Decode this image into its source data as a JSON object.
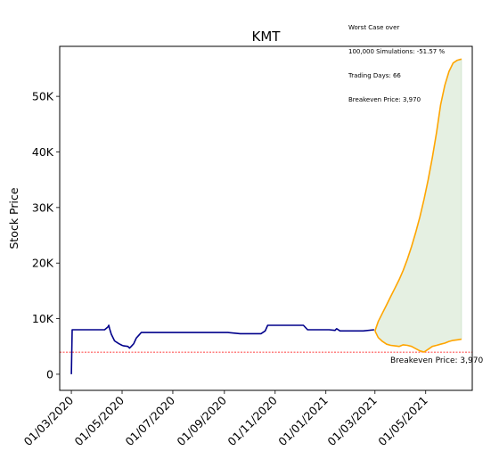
{
  "chart_data": {
    "type": "line",
    "title": "KMT",
    "xlabel": "",
    "ylabel": "Stock Price",
    "x_ticks": [
      "01/03/2020",
      "01/05/2020",
      "01/07/2020",
      "01/09/2020",
      "01/11/2020",
      "01/01/2021",
      "01/03/2021",
      "01/05/2021"
    ],
    "y_ticks": [
      "0",
      "10K",
      "20K",
      "30K",
      "40K",
      "50K"
    ],
    "y_tick_values": [
      0,
      10000,
      20000,
      30000,
      40000,
      50000
    ],
    "ylim": [
      -2900,
      59000
    ],
    "xlim": [
      "2020-02-16",
      "2021-06-26"
    ],
    "grid": false,
    "annotation_lines": [
      "Worst Case over",
      "100,000 Simulations: -51.57 %",
      "Trading Days: 66",
      "Breakeven Price: 3,970"
    ],
    "breakeven_label": "Breakeven Price: 3,970",
    "breakeven_value": 3970,
    "colors": {
      "history": "#00008b",
      "projection": "#ffa500",
      "fill": "#e5f0e2",
      "breakeven": "#ff0000"
    },
    "series": [
      {
        "role": "historical",
        "x": [
          "2020-03-01",
          "2020-03-02",
          "2020-03-03",
          "2020-03-20",
          "2020-04-01",
          "2020-04-10",
          "2020-04-14",
          "2020-04-15",
          "2020-04-16",
          "2020-04-18",
          "2020-04-22",
          "2020-04-27",
          "2020-05-01",
          "2020-05-03",
          "2020-05-08",
          "2020-05-10",
          "2020-05-12",
          "2020-05-15",
          "2020-05-18",
          "2020-05-21",
          "2020-05-24",
          "2020-05-28",
          "2020-06-15",
          "2020-07-15",
          "2020-08-15",
          "2020-09-01",
          "2020-09-05",
          "2020-09-20",
          "2020-10-15",
          "2020-10-20",
          "2020-10-23",
          "2020-11-15",
          "2020-12-05",
          "2020-12-10",
          "2021-01-05",
          "2021-01-12",
          "2021-01-14",
          "2021-01-18",
          "2021-02-15",
          "2021-02-28"
        ],
        "y": [
          0,
          8000,
          8000,
          8000,
          8000,
          8000,
          8500,
          8800,
          8200,
          7200,
          6000,
          5500,
          5200,
          5100,
          5000,
          4700,
          5000,
          5500,
          6500,
          7000,
          7500,
          7500,
          7500,
          7500,
          7500,
          7500,
          7500,
          7300,
          7300,
          7800,
          8800,
          8800,
          8800,
          8000,
          8000,
          7900,
          8200,
          7800,
          7800,
          8000
        ]
      },
      {
        "role": "projection-upper",
        "x": [
          "2021-03-01",
          "2021-03-05",
          "2021-03-10",
          "2021-03-15",
          "2021-03-20",
          "2021-03-25",
          "2021-03-30",
          "2021-04-04",
          "2021-04-09",
          "2021-04-14",
          "2021-04-19",
          "2021-04-24",
          "2021-04-29",
          "2021-05-04",
          "2021-05-09",
          "2021-05-14",
          "2021-05-19",
          "2021-05-24",
          "2021-05-29",
          "2021-06-03",
          "2021-06-08",
          "2021-06-13"
        ],
        "y": [
          7800,
          9500,
          11000,
          12500,
          14000,
          15500,
          17000,
          18700,
          20700,
          23000,
          25500,
          28300,
          31500,
          35000,
          39000,
          43500,
          48500,
          52000,
          54500,
          56000,
          56500,
          56700
        ]
      },
      {
        "role": "projection-lower",
        "x": [
          "2021-03-01",
          "2021-03-05",
          "2021-03-10",
          "2021-03-15",
          "2021-03-20",
          "2021-03-25",
          "2021-03-30",
          "2021-04-04",
          "2021-04-09",
          "2021-04-14",
          "2021-04-19",
          "2021-04-24",
          "2021-04-29",
          "2021-05-04",
          "2021-05-09",
          "2021-05-14",
          "2021-05-19",
          "2021-05-24",
          "2021-05-29",
          "2021-06-03",
          "2021-06-08",
          "2021-06-13"
        ],
        "y": [
          7800,
          6600,
          5900,
          5400,
          5200,
          5100,
          5000,
          5300,
          5200,
          5000,
          4600,
          4200,
          4000,
          4500,
          5000,
          5200,
          5400,
          5600,
          5900,
          6100,
          6200,
          6300
        ]
      }
    ]
  }
}
